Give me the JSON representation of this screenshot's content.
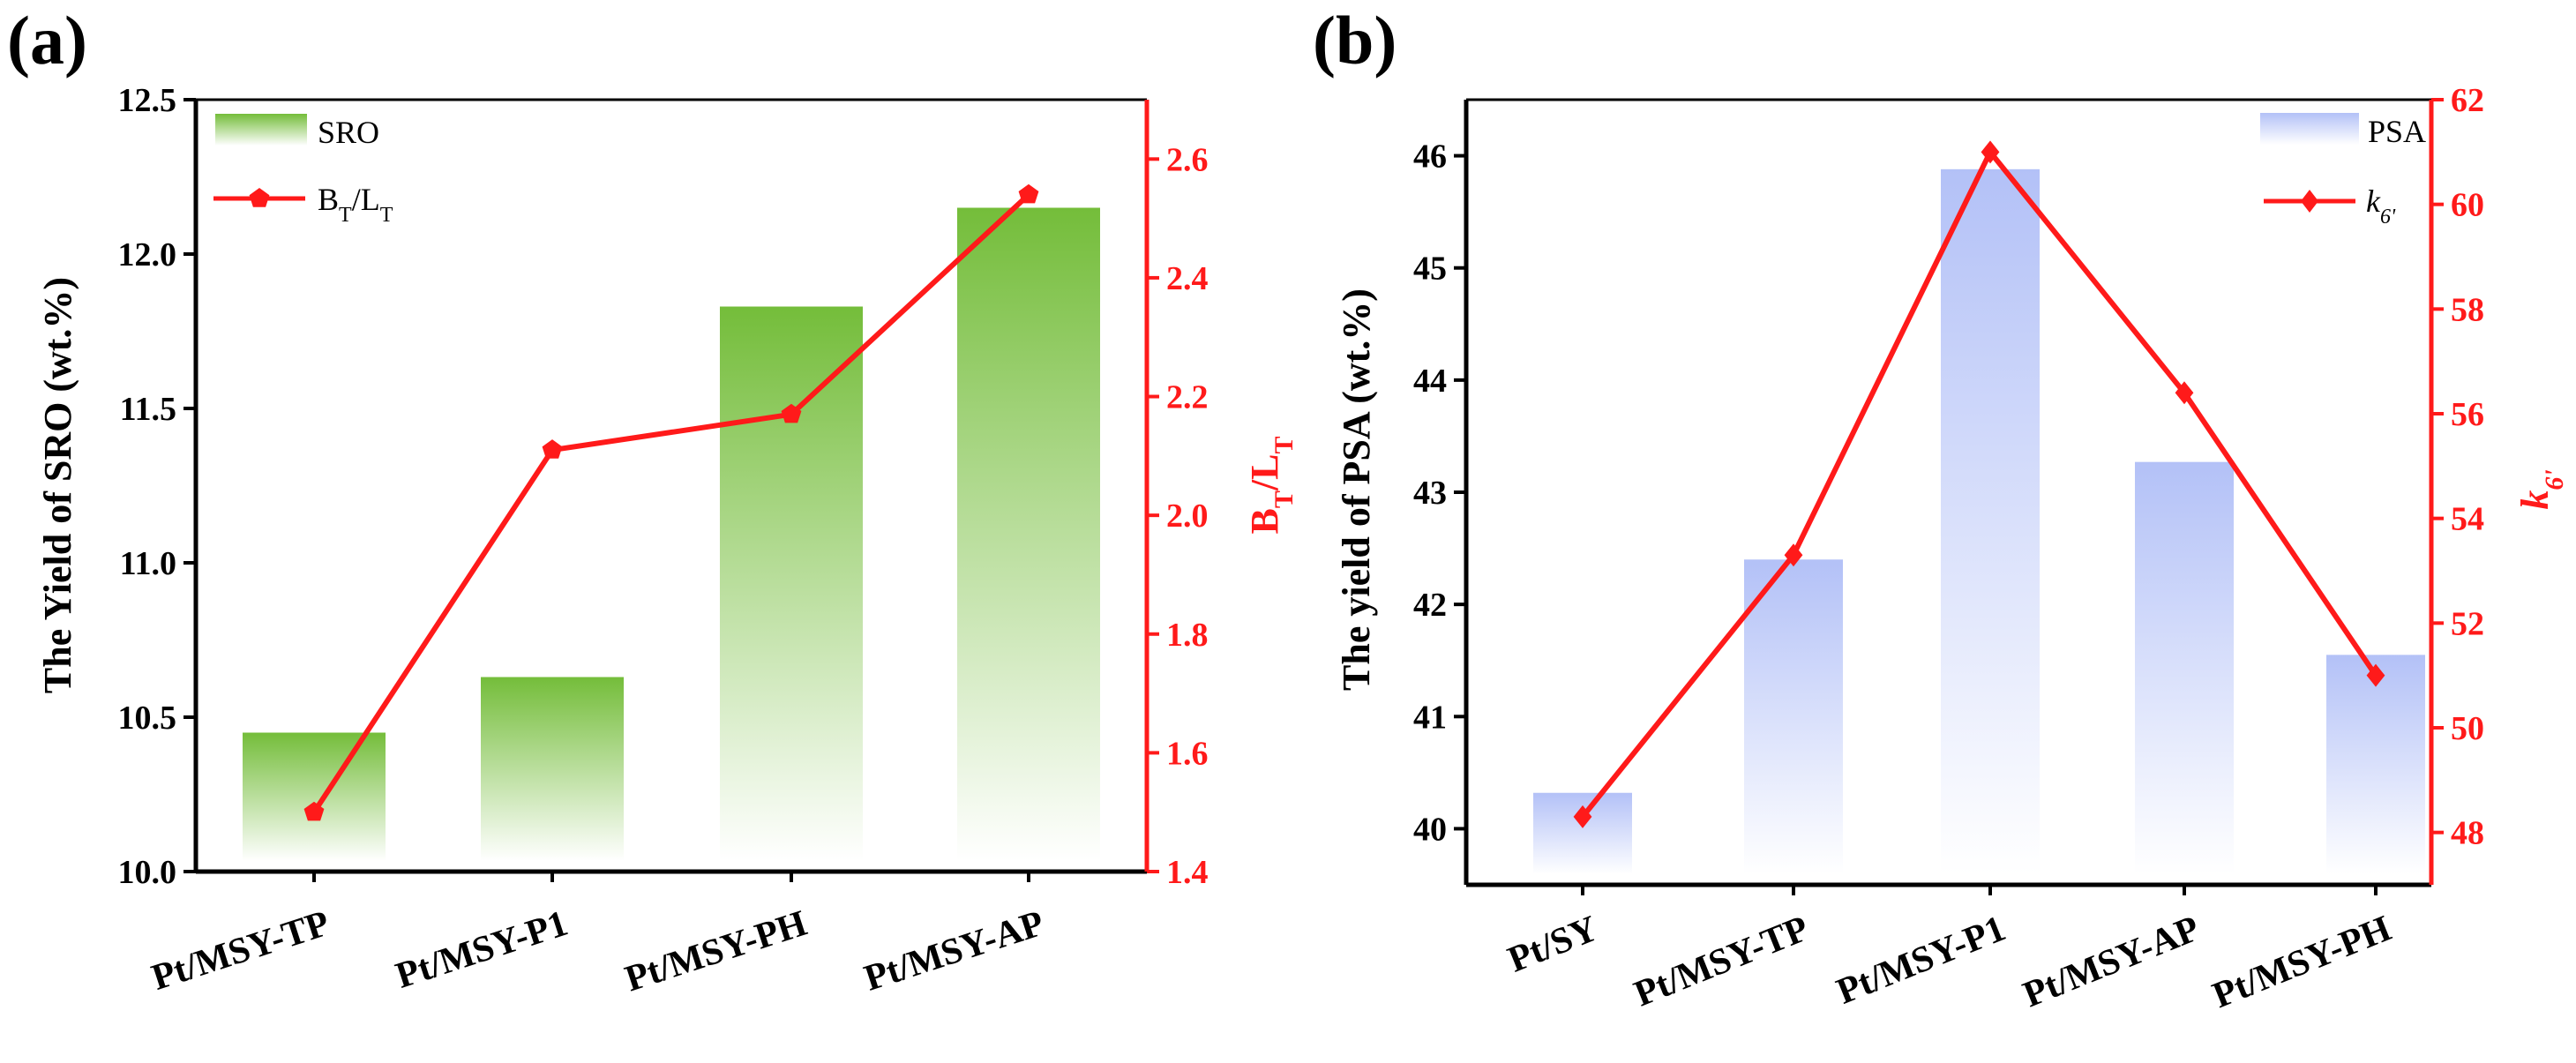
{
  "chart_data": [
    {
      "panel": "(a)",
      "type": "bar+line",
      "categories": [
        "Pt/MSY-TP",
        "Pt/MSY-P1",
        "Pt/MSY-PH",
        "Pt/MSY-AP"
      ],
      "bar_series": {
        "name": "SRO",
        "values": [
          10.45,
          10.63,
          11.83,
          12.15
        ],
        "color": "#74bd3a"
      },
      "line_series": {
        "name_main": "B",
        "name_sub1": "T",
        "name_mid": "/L",
        "name_sub2": "T",
        "values": [
          1.5,
          2.11,
          2.17,
          2.54
        ],
        "color": "#ff1a1a",
        "marker": "pentagon"
      },
      "ylabel_left": "The Yield of SRO (wt.%)",
      "ylabel_right": {
        "main": "B",
        "sub1": "T",
        "mid": "/L",
        "sub2": "T"
      },
      "ylim_left": [
        10.0,
        12.5
      ],
      "yticks_left": [
        "10.0",
        "10.5",
        "11.0",
        "11.5",
        "12.0",
        "12.5"
      ],
      "ylim_right": [
        1.4,
        2.7
      ],
      "yticks_right": [
        "1.4",
        "1.6",
        "1.8",
        "2.0",
        "2.2",
        "2.4",
        "2.6"
      ],
      "legend_position": "top-left",
      "left_axis_color": "#000000",
      "right_axis_color": "#ff1a1a"
    },
    {
      "panel": "(b)",
      "type": "bar+line",
      "categories": [
        "Pt/SY",
        "Pt/MSY-TP",
        "Pt/MSY-P1",
        "Pt/MSY-AP",
        "Pt/MSY-PH"
      ],
      "bar_series": {
        "name": "PSA",
        "values": [
          40.32,
          42.4,
          45.88,
          43.27,
          41.55
        ],
        "color": "#b3c1f7"
      },
      "line_series": {
        "name_main": "k",
        "name_sub": "6'",
        "values": [
          48.3,
          53.3,
          61.0,
          56.4,
          51.0
        ],
        "color": "#ff1a1a",
        "marker": "diamond"
      },
      "ylabel_left": "The yield of PSA (wt.%)",
      "ylabel_right": {
        "main": "k",
        "sub": "6'"
      },
      "ylim_left": [
        39.5,
        46.5
      ],
      "yticks_left": [
        "40",
        "41",
        "42",
        "43",
        "44",
        "45",
        "46"
      ],
      "ylim_right": [
        47.0,
        62.0
      ],
      "yticks_right": [
        "48",
        "50",
        "52",
        "54",
        "56",
        "58",
        "60",
        "62"
      ],
      "legend_position": "top-right",
      "left_axis_color": "#000000",
      "right_axis_color": "#ff1a1a"
    }
  ]
}
